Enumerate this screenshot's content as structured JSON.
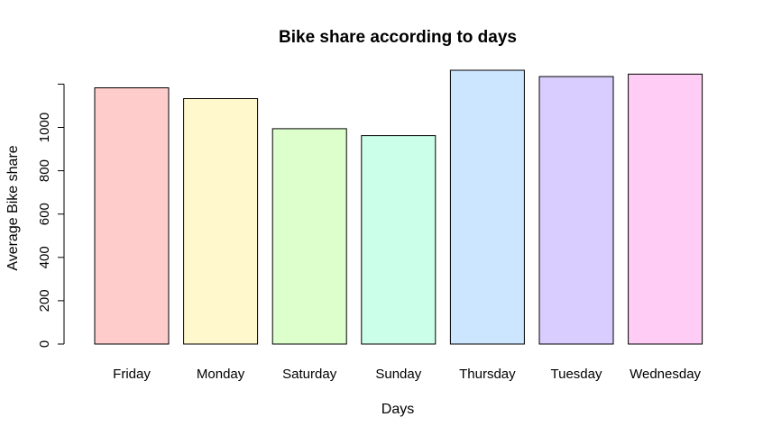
{
  "chart_data": {
    "type": "bar",
    "title": "Bike share according to days",
    "xlabel": "Days",
    "ylabel": "Average Bike share",
    "ylim": [
      0,
      1200
    ],
    "yticks": [
      0,
      200,
      400,
      600,
      800,
      1000
    ],
    "grid": false,
    "legend": "none",
    "categories": [
      "Friday",
      "Monday",
      "Saturday",
      "Sunday",
      "Thursday",
      "Tuesday",
      "Wednesday"
    ],
    "values": [
      1183,
      1133,
      994,
      962,
      1264,
      1235,
      1246
    ],
    "colors": [
      "#ffcccc",
      "#fff8cc",
      "#dcffcc",
      "#ccffea",
      "#cce6ff",
      "#d9ccff",
      "#ffccf6"
    ]
  }
}
